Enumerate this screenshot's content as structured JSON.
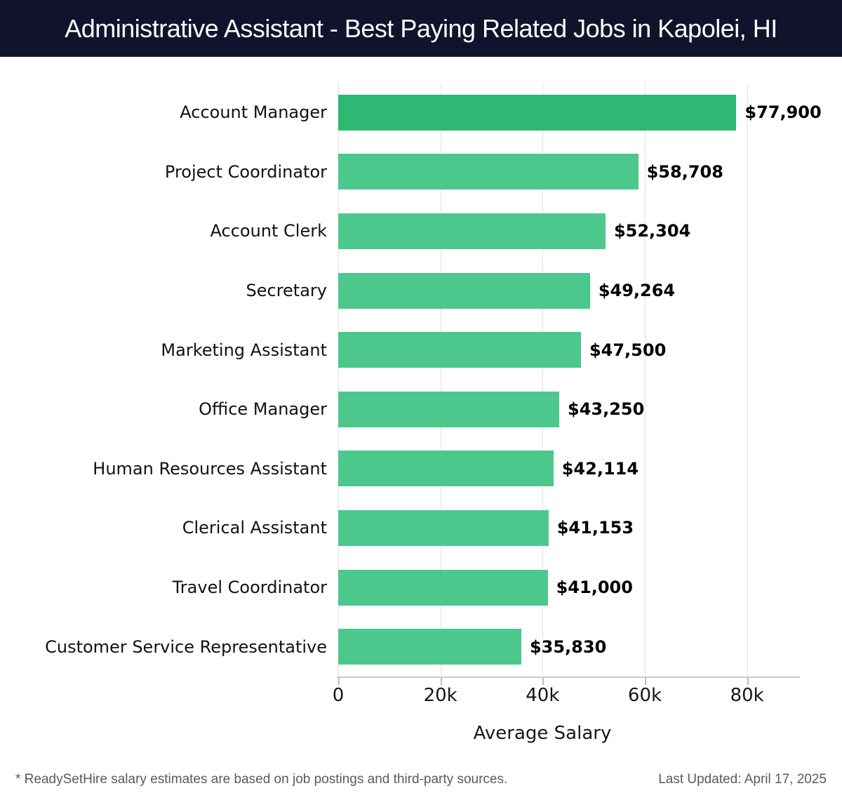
{
  "header": {
    "title": "Administrative Assistant - Best Paying Related Jobs in Kapolei, HI"
  },
  "chart_data": {
    "type": "bar",
    "orientation": "horizontal",
    "title": "Administrative Assistant - Best Paying Related Jobs in Kapolei, HI",
    "categories": [
      "Account Manager",
      "Project Coordinator",
      "Account Clerk",
      "Secretary",
      "Marketing Assistant",
      "Office Manager",
      "Human Resources Assistant",
      "Clerical Assistant",
      "Travel Coordinator",
      "Customer Service Representative"
    ],
    "values": [
      77900,
      58708,
      52304,
      49264,
      47500,
      43250,
      42114,
      41153,
      41000,
      35830
    ],
    "value_labels": [
      "$77,900",
      "$58,708",
      "$52,304",
      "$49,264",
      "$47,500",
      "$43,250",
      "$42,114",
      "$41,153",
      "$41,000",
      "$35,830"
    ],
    "xlabel": "Average Salary",
    "ylabel": "",
    "xlim": [
      0,
      90300
    ],
    "x_tick_values": [
      0,
      20000,
      40000,
      60000,
      80000
    ],
    "x_tick_labels": [
      "0",
      "20k",
      "40k",
      "60k",
      "80k"
    ],
    "grid": "vertical-on",
    "legend": "none",
    "colors": {
      "bar_first": "#2db873",
      "bar_rest": "#4cc88d",
      "gridline": "#e1e1e1",
      "header_bg": "#11132c"
    }
  },
  "footer": {
    "note": "* ReadySetHire salary estimates are based on job postings and third-party sources.",
    "last_updated": "Last Updated: April 17, 2025"
  }
}
